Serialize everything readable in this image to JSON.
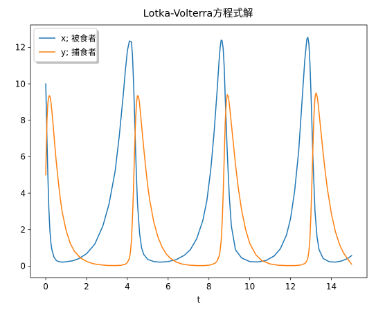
{
  "chart_data": {
    "type": "line",
    "title": "Lotka-Volterra方程式解",
    "xlabel": "t",
    "ylabel": "",
    "xlim": [
      -0.75,
      15.75
    ],
    "ylim": [
      -0.63,
      13.23
    ],
    "xticks": [
      0,
      2,
      4,
      6,
      8,
      10,
      12,
      14
    ],
    "yticks": [
      0,
      2,
      4,
      6,
      8,
      10,
      12
    ],
    "grid": false,
    "legend_position": "upper-left",
    "series": [
      {
        "name": "x; 被食者",
        "color": "#1f77b4",
        "x": [
          0,
          0.05,
          0.1,
          0.15,
          0.2,
          0.25,
          0.3,
          0.4,
          0.5,
          0.6,
          0.8,
          1.0,
          1.3,
          1.6,
          2.0,
          2.4,
          2.8,
          3.1,
          3.4,
          3.6,
          3.8,
          3.9,
          4.0,
          4.1,
          4.2,
          4.25,
          4.3,
          4.35,
          4.4,
          4.45,
          4.5,
          4.6,
          4.7,
          4.8,
          5.0,
          5.3,
          5.6,
          6.0,
          6.4,
          6.8,
          7.1,
          7.4,
          7.7,
          7.9,
          8.1,
          8.25,
          8.4,
          8.5,
          8.55,
          8.6,
          8.65,
          8.7,
          8.75,
          8.8,
          8.9,
          9.0,
          9.1,
          9.3,
          9.6,
          10.0,
          10.4,
          10.8,
          11.2,
          11.5,
          11.8,
          12.0,
          12.2,
          12.4,
          12.55,
          12.7,
          12.8,
          12.85,
          12.9,
          12.95,
          13.0,
          13.05,
          13.1,
          13.2,
          13.3,
          13.4,
          13.6,
          13.9,
          14.2,
          14.5,
          14.8,
          15.0
        ],
        "values": [
          10.0,
          7.4,
          5.1,
          3.2,
          2.0,
          1.3,
          0.9,
          0.5,
          0.33,
          0.26,
          0.22,
          0.24,
          0.29,
          0.4,
          0.68,
          1.2,
          2.2,
          3.4,
          5.2,
          7.1,
          9.4,
          10.7,
          11.8,
          12.35,
          12.3,
          11.6,
          10.2,
          8.5,
          6.5,
          4.8,
          3.4,
          1.8,
          1.0,
          0.65,
          0.37,
          0.25,
          0.22,
          0.25,
          0.36,
          0.6,
          0.92,
          1.5,
          2.5,
          3.6,
          5.4,
          7.3,
          9.6,
          11.3,
          12.0,
          12.4,
          12.35,
          11.9,
          10.9,
          9.2,
          6.2,
          3.8,
          2.2,
          0.9,
          0.45,
          0.25,
          0.23,
          0.31,
          0.56,
          0.95,
          1.7,
          2.6,
          4.1,
          6.3,
          8.8,
          11.3,
          12.45,
          12.55,
          12.2,
          11.2,
          9.6,
          7.8,
          5.9,
          3.0,
          1.6,
          0.9,
          0.42,
          0.24,
          0.22,
          0.28,
          0.42,
          0.58
        ]
      },
      {
        "name": "y; 捕食者",
        "color": "#ff7f0e",
        "x": [
          0,
          0.03,
          0.06,
          0.1,
          0.14,
          0.18,
          0.22,
          0.26,
          0.3,
          0.35,
          0.4,
          0.5,
          0.6,
          0.7,
          0.8,
          1.0,
          1.2,
          1.4,
          1.7,
          2.0,
          2.3,
          2.6,
          3.0,
          3.4,
          3.7,
          3.9,
          4.0,
          4.1,
          4.15,
          4.2,
          4.25,
          4.3,
          4.35,
          4.4,
          4.45,
          4.5,
          4.55,
          4.6,
          4.65,
          4.7,
          4.8,
          4.9,
          5.0,
          5.1,
          5.3,
          5.5,
          5.7,
          5.9,
          6.1,
          6.4,
          6.7,
          7.0,
          7.4,
          7.8,
          8.1,
          8.3,
          8.4,
          8.5,
          8.55,
          8.6,
          8.65,
          8.7,
          8.75,
          8.8,
          8.85,
          8.9,
          8.95,
          9.0,
          9.1,
          9.2,
          9.3,
          9.45,
          9.6,
          9.8,
          10.0,
          10.3,
          10.6,
          11.0,
          11.4,
          11.8,
          12.2,
          12.5,
          12.7,
          12.8,
          12.85,
          12.9,
          12.95,
          13.0,
          13.05,
          13.1,
          13.15,
          13.2,
          13.25,
          13.3,
          13.35,
          13.4,
          13.5,
          13.6,
          13.7,
          13.8,
          14.0,
          14.2,
          14.4,
          14.6,
          14.8,
          15.0
        ],
        "values": [
          5.0,
          6.7,
          8.0,
          8.9,
          9.25,
          9.35,
          9.25,
          8.95,
          8.5,
          7.9,
          7.2,
          5.9,
          4.8,
          3.8,
          3.0,
          1.95,
          1.25,
          0.82,
          0.45,
          0.26,
          0.14,
          0.08,
          0.04,
          0.03,
          0.05,
          0.1,
          0.2,
          0.42,
          0.75,
          1.4,
          2.6,
          4.2,
          6.2,
          7.9,
          9.0,
          9.35,
          9.3,
          8.9,
          8.3,
          7.7,
          6.5,
          5.4,
          4.4,
          3.6,
          2.4,
          1.6,
          1.05,
          0.68,
          0.44,
          0.22,
          0.11,
          0.06,
          0.03,
          0.03,
          0.07,
          0.16,
          0.28,
          0.55,
          0.85,
          1.4,
          2.4,
          4.0,
          6.0,
          7.9,
          9.0,
          9.4,
          9.3,
          8.9,
          7.8,
          6.7,
          5.6,
          4.2,
          3.1,
          2.0,
          1.25,
          0.62,
          0.3,
          0.12,
          0.05,
          0.03,
          0.03,
          0.06,
          0.14,
          0.28,
          0.45,
          0.8,
          1.5,
          2.8,
          4.6,
          6.6,
          8.3,
          9.25,
          9.5,
          9.35,
          8.95,
          8.4,
          7.3,
          6.2,
          5.2,
          4.3,
          2.9,
          1.9,
          1.2,
          0.72,
          0.4,
          0.1
        ]
      }
    ]
  }
}
